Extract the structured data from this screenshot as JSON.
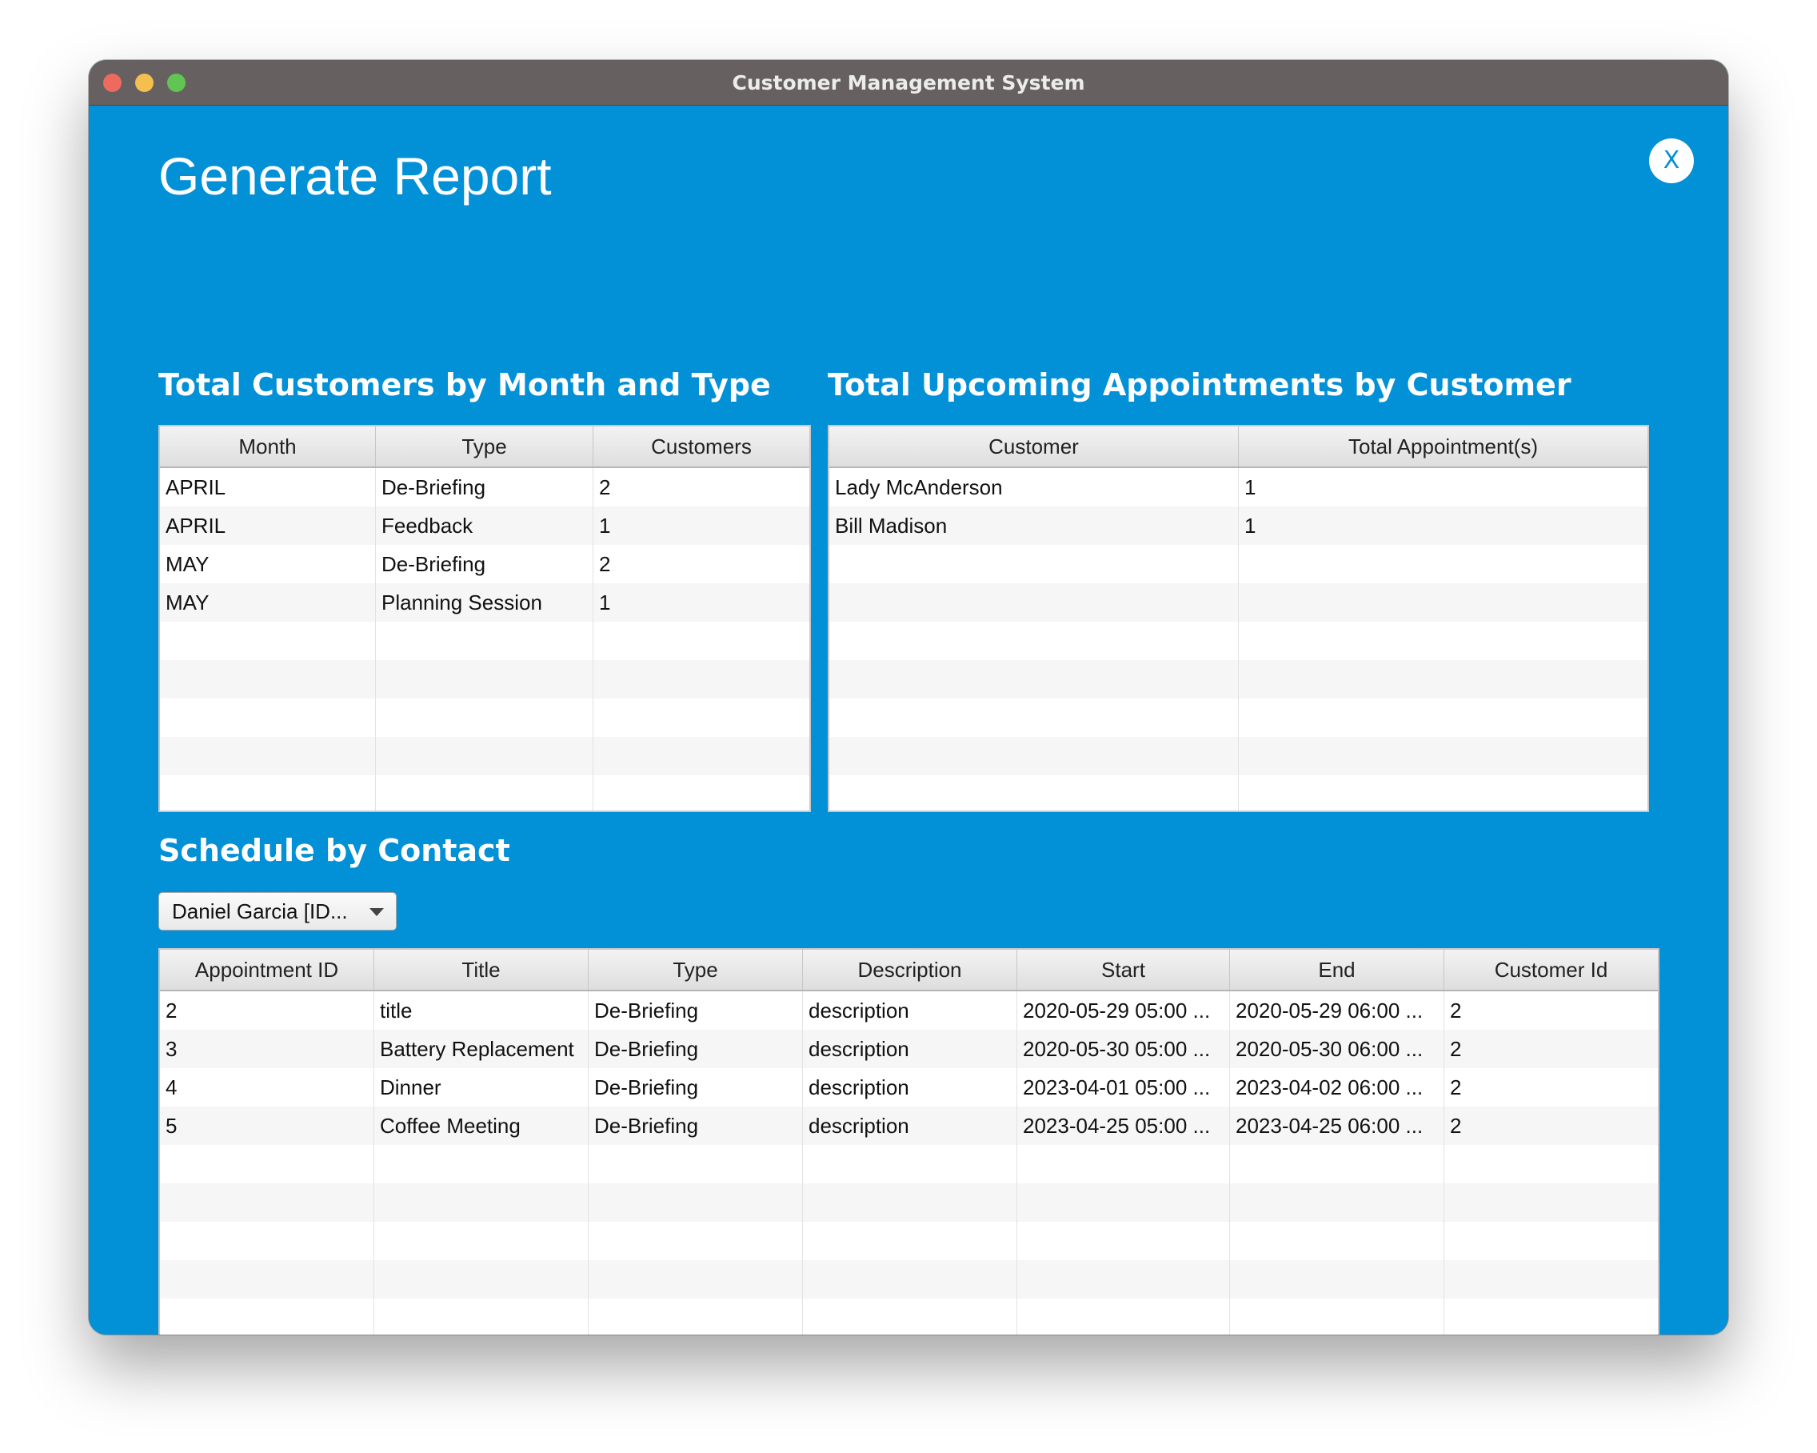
{
  "window": {
    "title": "Customer Management System"
  },
  "page": {
    "title": "Generate Report",
    "close_label": "X"
  },
  "customers_by_month": {
    "title": "Total Customers by Month and Type",
    "columns": [
      "Month",
      "Type",
      "Customers"
    ],
    "rows": [
      [
        "APRIL",
        "De-Briefing",
        "2"
      ],
      [
        "APRIL",
        "Feedback",
        "1"
      ],
      [
        "MAY",
        "De-Briefing",
        "2"
      ],
      [
        "MAY",
        "Planning Session",
        "1"
      ]
    ]
  },
  "upcoming_by_customer": {
    "title": "Total Upcoming Appointments by Customer",
    "columns": [
      "Customer",
      "Total Appointment(s)"
    ],
    "rows": [
      [
        "Lady McAnderson",
        "1"
      ],
      [
        "Bill Madison",
        "1"
      ]
    ]
  },
  "schedule_by_contact": {
    "title": "Schedule by Contact",
    "selected_contact": "Daniel Garcia [ID...",
    "columns": [
      "Appointment ID",
      "Title",
      "Type",
      "Description",
      "Start",
      "End",
      "Customer Id"
    ],
    "rows": [
      [
        "2",
        "title",
        "De-Briefing",
        "description",
        "2020-05-29 05:00 ...",
        "2020-05-29 06:00 ...",
        "2"
      ],
      [
        "3",
        "Battery Replacement",
        "De-Briefing",
        "description",
        "2020-05-30 05:00 ...",
        "2020-05-30 06:00 ...",
        "2"
      ],
      [
        "4",
        "Dinner",
        "De-Briefing",
        "description",
        "2023-04-01 05:00 ...",
        "2023-04-02 06:00 ...",
        "2"
      ],
      [
        "5",
        "Coffee Meeting",
        "De-Briefing",
        "description",
        "2023-04-25 05:00 ...",
        "2023-04-25 06:00 ...",
        "2"
      ]
    ]
  },
  "colors": {
    "background": "#0290d7",
    "titlebar": "#676060",
    "accent_text": "#ffffff"
  }
}
